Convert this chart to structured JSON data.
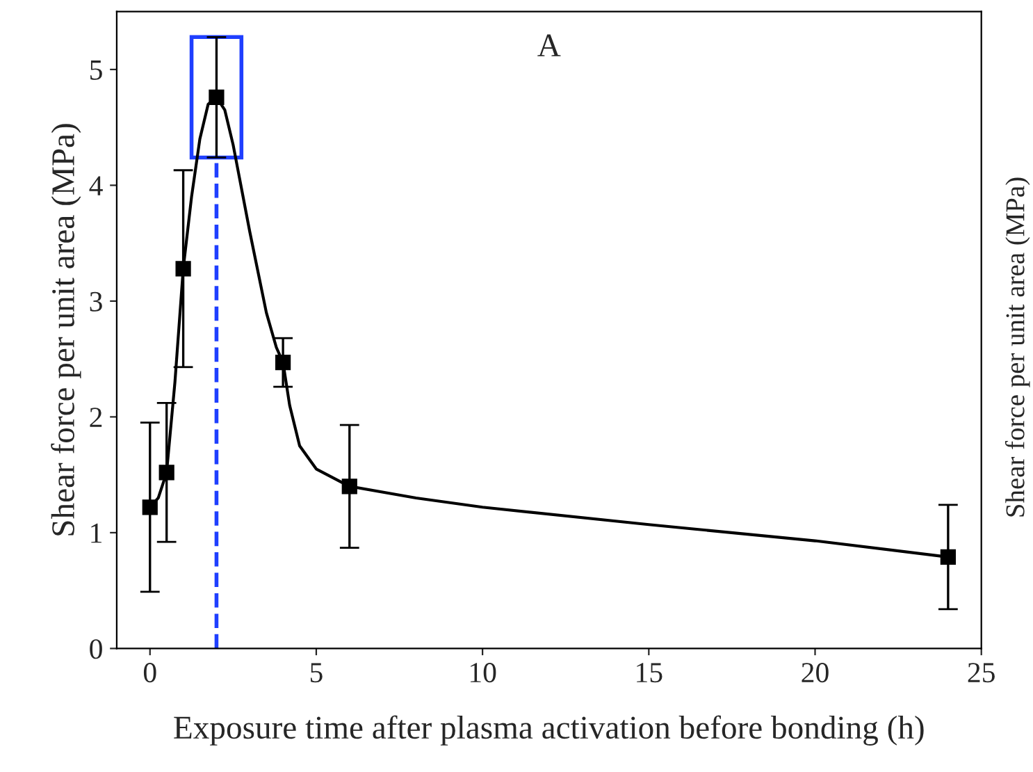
{
  "chart_data": {
    "type": "scatter",
    "xlabel": "Exposure time after plasma activation before bonding (h)",
    "ylabel": "Shear force per unit area (MPa)",
    "annotations": [
      "A",
      "Shear force per unit area (MPa)"
    ],
    "series": [
      {
        "marker": "square",
        "color": "#000000",
        "x": [
          0,
          0.5,
          1,
          2,
          4,
          6,
          24
        ],
        "values": [
          1.22,
          1.52,
          3.28,
          4.76,
          2.47,
          1.4,
          0.79
        ],
        "errors": [
          0.73,
          0.6,
          0.85,
          0.52,
          0.21,
          0.53,
          0.45
        ]
      },
      {
        "type": "line",
        "line_style": "solid",
        "color": "#000000",
        "x": [
          0,
          0.25,
          0.5,
          0.75,
          1,
          1.25,
          1.5,
          1.75,
          2,
          2.25,
          2.5,
          3,
          3.5,
          3.8,
          4,
          4.2,
          4.5,
          5,
          6,
          8,
          10,
          15,
          20,
          24
        ],
        "values": [
          1.22,
          1.3,
          1.52,
          2.3,
          3.28,
          3.9,
          4.4,
          4.7,
          4.76,
          4.65,
          4.35,
          3.6,
          2.9,
          2.6,
          2.47,
          2.1,
          1.75,
          1.55,
          1.4,
          1.3,
          1.22,
          1.07,
          0.93,
          0.79
        ]
      }
    ],
    "xlim": [
      -1,
      25
    ],
    "ylim": [
      0,
      5.5
    ],
    "xticks": [
      0,
      5,
      10,
      15,
      20,
      25
    ],
    "yticks": [
      0,
      1,
      2,
      3,
      4,
      5
    ],
    "ref_lines": [
      {
        "axis": "x",
        "value": 2,
        "color": "#1f3fff",
        "line_style": "dashed"
      }
    ],
    "grid": false,
    "legend": false
  }
}
